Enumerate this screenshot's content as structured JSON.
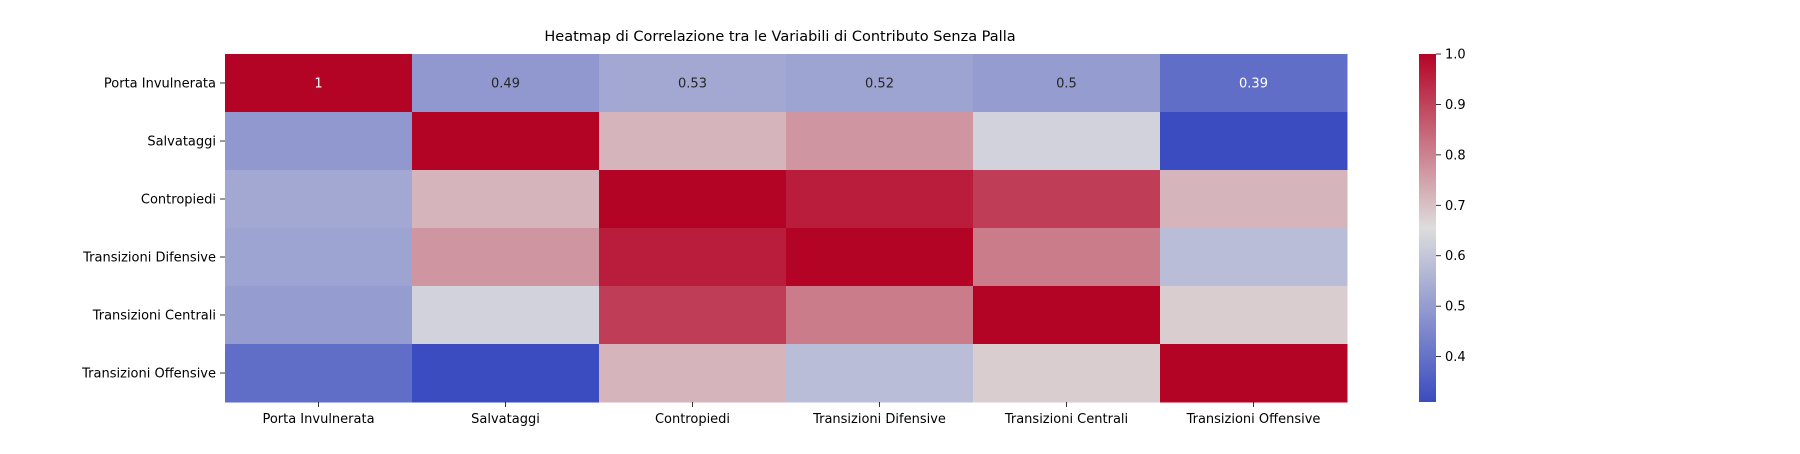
{
  "chart_data": {
    "type": "heatmap",
    "title": "Heatmap di Correlazione tra le Variabili di Contributo Senza Palla",
    "xlabel": "",
    "ylabel": "",
    "row_labels": [
      "Porta Invulnerata",
      "Salvataggi",
      "Contropiedi",
      "Transizioni Difensive",
      "Transizioni Centrali",
      "Transizioni Offensive"
    ],
    "col_labels": [
      "Porta Invulnerata",
      "Salvataggi",
      "Contropiedi",
      "Transizioni Difensive",
      "Transizioni Centrali",
      "Transizioni Offensive"
    ],
    "values": [
      [
        1.0,
        0.49,
        0.53,
        0.52,
        0.5,
        0.39
      ],
      [
        0.49,
        1.0,
        0.72,
        0.77,
        0.63,
        0.31
      ],
      [
        0.53,
        0.72,
        1.0,
        0.96,
        0.91,
        0.72
      ],
      [
        0.52,
        0.77,
        0.96,
        1.0,
        0.81,
        0.58
      ],
      [
        0.5,
        0.63,
        0.91,
        0.81,
        1.0,
        0.68
      ],
      [
        0.39,
        0.31,
        0.72,
        0.58,
        0.68,
        1.0
      ]
    ],
    "annotated_labels": [
      "1",
      "0.49",
      "0.53",
      "0.52",
      "0.5",
      "0.39"
    ],
    "colormap": "coolwarm",
    "colormap_colors": [
      "#3b4cc0",
      "#dddddd",
      "#b40426"
    ],
    "vmin": 0.31,
    "vmax": 1.0,
    "colorbar_ticks": [
      "0.4",
      "0.5",
      "0.6",
      "0.7",
      "0.8",
      "0.9",
      "1.0"
    ],
    "colorbar_tick_values": [
      0.4,
      0.5,
      0.6,
      0.7,
      0.8,
      0.9,
      1.0
    ],
    "grid": false,
    "legend": "colorbar-right"
  }
}
